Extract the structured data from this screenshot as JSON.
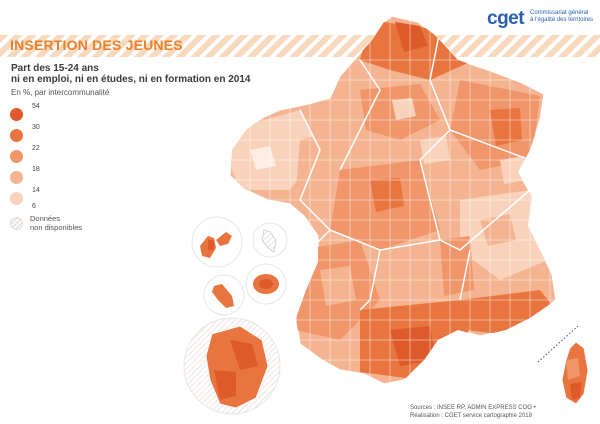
{
  "header": {
    "section_title": "INSERTION DES JEUNES"
  },
  "logo": {
    "mark": "cget",
    "line1": "Commissariat général",
    "line2": "à l'égalité des territoires"
  },
  "titles": {
    "line1": "Part des 15-24 ans",
    "line2": "ni en emploi, ni en études, ni en formation en 2014",
    "unit": "En %, par intercommunalité"
  },
  "legend": {
    "classes": [
      {
        "label": "54",
        "color": "#df5a2a"
      },
      {
        "label": "30",
        "color": "#e8753f"
      },
      {
        "label": "22",
        "color": "#f0966a"
      },
      {
        "label": "18",
        "color": "#f5b491"
      },
      {
        "label": "14",
        "color": "#f9d2bb"
      },
      {
        "label": "6",
        "color": "#ffffff"
      }
    ],
    "nodata_line1": "Données",
    "nodata_line2": "non disponibles"
  },
  "sources": {
    "line1": "Sources : INSEE RP, ADMIN EXPRESS COG •",
    "line2": "Réalisation : CGET service cartographie 2018"
  }
}
